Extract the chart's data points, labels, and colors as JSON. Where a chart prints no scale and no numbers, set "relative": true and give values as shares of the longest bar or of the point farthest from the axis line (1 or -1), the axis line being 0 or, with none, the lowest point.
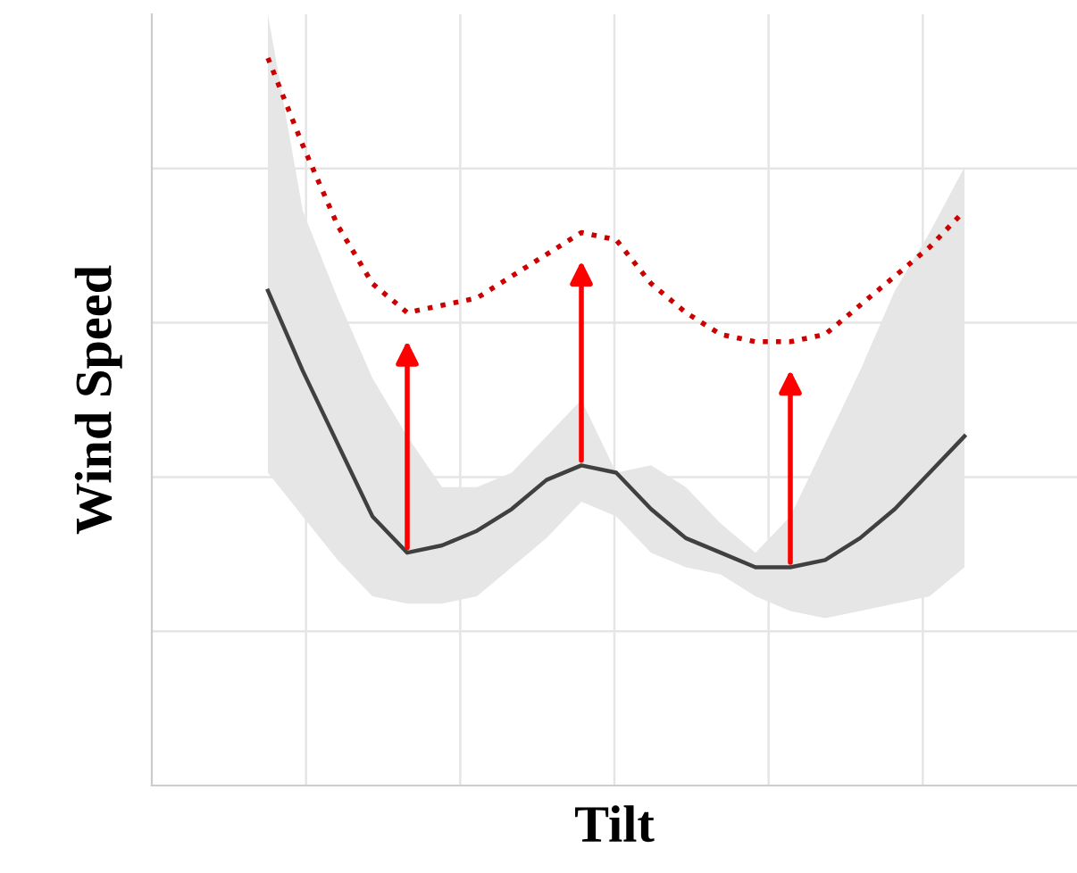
{
  "chart_data": {
    "type": "line",
    "relative": true,
    "xlabel": "Tilt",
    "ylabel": "Wind Speed",
    "grid": true,
    "legend": false,
    "categories": [
      null,
      null,
      null,
      null,
      null,
      null,
      null,
      null,
      null,
      null,
      null,
      null,
      null,
      null,
      null,
      null,
      null,
      null,
      null,
      null,
      null
    ],
    "series": [
      {
        "color": "#404040",
        "line_style": "solid",
        "values": [
          0.68,
          0.57,
          0.47,
          0.37,
          0.32,
          0.33,
          0.35,
          0.38,
          0.42,
          0.44,
          0.43,
          0.38,
          0.34,
          0.32,
          0.3,
          0.3,
          0.31,
          0.34,
          0.38,
          0.43,
          0.48
        ],
        "lower": [
          0.43,
          0.37,
          0.31,
          0.26,
          0.25,
          0.25,
          0.26,
          0.3,
          0.34,
          0.39,
          0.37,
          0.32,
          0.3,
          0.29,
          0.26,
          0.24,
          0.23,
          0.24,
          0.25,
          0.26,
          0.3
        ],
        "upper": [
          1.06,
          0.79,
          0.67,
          0.56,
          0.48,
          0.41,
          0.41,
          0.43,
          0.48,
          0.53,
          0.43,
          0.44,
          0.41,
          0.36,
          0.32,
          0.37,
          0.47,
          0.57,
          0.68,
          0.76,
          0.85
        ]
      },
      {
        "color": "#cc0000",
        "line_style": "dotted",
        "values": [
          1.0,
          0.88,
          0.77,
          0.69,
          0.65,
          0.66,
          0.67,
          0.7,
          0.73,
          0.76,
          0.75,
          0.69,
          0.65,
          0.62,
          0.61,
          0.61,
          0.62,
          0.66,
          0.7,
          0.74,
          0.79
        ]
      }
    ]
  }
}
